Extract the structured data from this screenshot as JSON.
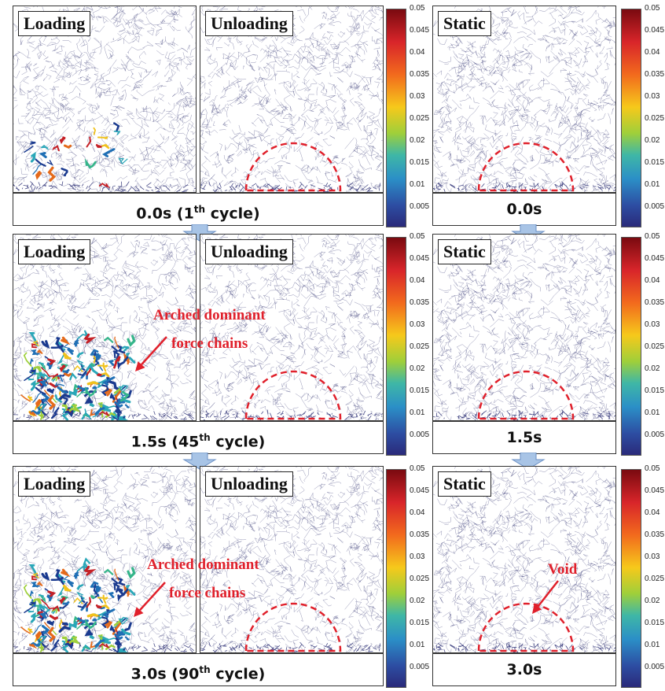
{
  "labels": {
    "loading": "Loading",
    "unloading": "Unloading",
    "static": "Static"
  },
  "rows": [
    {
      "cyclic_time": "0.0s",
      "cyclic_cycle_num": "1",
      "cyclic_cycle_sup": "th",
      "cyclic_cycle_word": "cycle",
      "static_time": "0.0s"
    },
    {
      "cyclic_time": "1.5s",
      "cyclic_cycle_num": "45",
      "cyclic_cycle_sup": "th",
      "cyclic_cycle_word": "cycle",
      "static_time": "1.5s"
    },
    {
      "cyclic_time": "3.0s",
      "cyclic_cycle_num": "90",
      "cyclic_cycle_sup": "th",
      "cyclic_cycle_word": "cycle",
      "static_time": "3.0s"
    }
  ],
  "colorbar": {
    "ticks": [
      "0.05",
      "0.045",
      "0.04",
      "0.035",
      "0.03",
      "0.025",
      "0.02",
      "0.015",
      "0.01",
      "0.005"
    ]
  },
  "annotations": {
    "arched_line1": "Arched dominant",
    "arched_line2": "force chains",
    "void": "Void"
  },
  "colors": {
    "annotation": "#e0202b",
    "network": "#26286b",
    "arrow_fill": "#a8c4e6",
    "arrow_stroke": "#6a8fc4"
  }
}
